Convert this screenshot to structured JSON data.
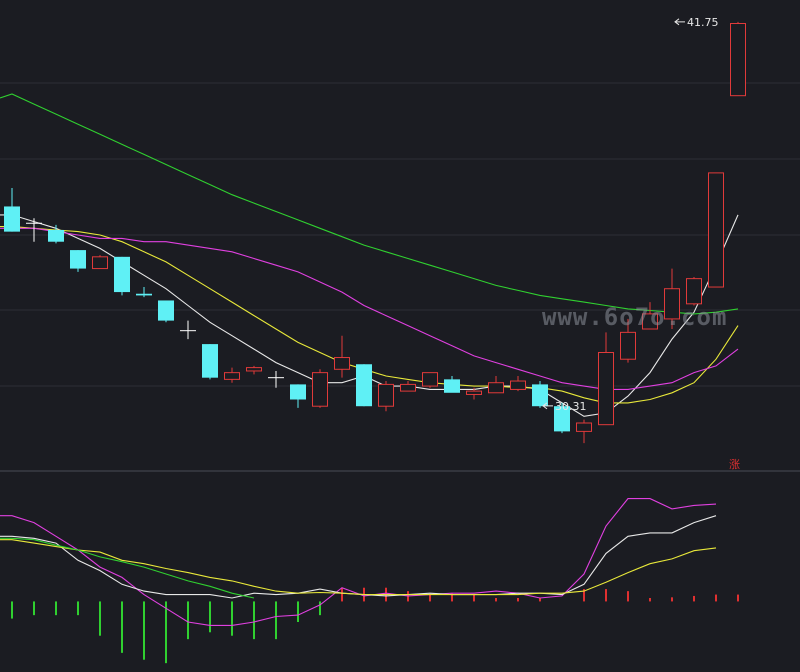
{
  "watermark": "www.6o7o.com",
  "limit_up_badge": "涨",
  "colors": {
    "background": "#1b1c22",
    "grid": "#2c2e37",
    "up": "#e03a3a",
    "down": "#5ff0f5",
    "cross": "#ffffff",
    "ma5": "#e8e8e8",
    "ma10": "#e8e83a",
    "ma20": "#e040e0",
    "ma60": "#30d030",
    "macd_pos": "#e03030",
    "macd_neg": "#30d030"
  },
  "chart_data": [
    {
      "type": "candlestick",
      "title": "",
      "ylim": [
        28.4,
        42.4
      ],
      "annotations": [
        {
          "text": "41.75",
          "value": 41.75,
          "candle": 30
        },
        {
          "text": "30.31",
          "value": 30.31,
          "candle": 24
        }
      ],
      "candles": [
        {
          "o": 36.25,
          "h": 36.8,
          "l": 35.5,
          "c": 35.5
        },
        {
          "o": 35.75,
          "h": 35.9,
          "l": 35.2,
          "c": 35.75
        },
        {
          "o": 35.55,
          "h": 35.7,
          "l": 35.15,
          "c": 35.2
        },
        {
          "o": 34.95,
          "h": 34.95,
          "l": 34.3,
          "c": 34.4
        },
        {
          "o": 34.4,
          "h": 34.8,
          "l": 34.4,
          "c": 34.75
        },
        {
          "o": 34.75,
          "h": 34.75,
          "l": 33.6,
          "c": 33.7
        },
        {
          "o": 33.65,
          "h": 33.85,
          "l": 33.55,
          "c": 33.6
        },
        {
          "o": 33.45,
          "h": 33.45,
          "l": 32.8,
          "c": 32.85
        },
        {
          "o": 32.55,
          "h": 32.85,
          "l": 32.3,
          "c": 32.55
        },
        {
          "o": 32.15,
          "h": 32.15,
          "l": 31.1,
          "c": 31.15
        },
        {
          "o": 31.1,
          "h": 31.45,
          "l": 31.0,
          "c": 31.3
        },
        {
          "o": 31.35,
          "h": 31.5,
          "l": 31.25,
          "c": 31.45
        },
        {
          "o": 31.15,
          "h": 31.35,
          "l": 30.85,
          "c": 31.15
        },
        {
          "o": 30.95,
          "h": 30.95,
          "l": 30.25,
          "c": 30.5
        },
        {
          "o": 30.3,
          "h": 31.4,
          "l": 30.25,
          "c": 31.3
        },
        {
          "o": 31.4,
          "h": 32.4,
          "l": 31.15,
          "c": 31.75
        },
        {
          "o": 31.55,
          "h": 31.55,
          "l": 30.3,
          "c": 30.3
        },
        {
          "o": 30.3,
          "h": 31.05,
          "l": 30.15,
          "c": 30.95
        },
        {
          "o": 30.75,
          "h": 31.05,
          "l": 30.75,
          "c": 30.95
        },
        {
          "o": 30.9,
          "h": 31.3,
          "l": 30.85,
          "c": 31.3
        },
        {
          "o": 31.1,
          "h": 31.2,
          "l": 30.8,
          "c": 30.7
        },
        {
          "o": 30.65,
          "h": 30.85,
          "l": 30.5,
          "c": 30.75
        },
        {
          "o": 30.7,
          "h": 31.2,
          "l": 30.7,
          "c": 31.0
        },
        {
          "o": 30.8,
          "h": 31.2,
          "l": 30.75,
          "c": 31.05
        },
        {
          "o": 30.95,
          "h": 31.05,
          "l": 30.25,
          "c": 30.3
        },
        {
          "o": 30.3,
          "h": 30.4,
          "l": 29.5,
          "c": 29.55
        },
        {
          "o": 29.55,
          "h": 29.9,
          "l": 29.2,
          "c": 29.8
        },
        {
          "o": 29.75,
          "h": 32.5,
          "l": 29.75,
          "c": 31.9
        },
        {
          "o": 31.7,
          "h": 32.9,
          "l": 31.6,
          "c": 32.5
        },
        {
          "o": 32.6,
          "h": 33.4,
          "l": 32.6,
          "c": 33.05
        },
        {
          "o": 32.9,
          "h": 34.4,
          "l": 32.6,
          "c": 33.8
        },
        {
          "o": 33.35,
          "h": 34.15,
          "l": 33.3,
          "c": 34.1
        },
        {
          "o": 33.85,
          "h": 37.25,
          "l": 33.85,
          "c": 37.25
        },
        {
          "o": 39.55,
          "h": 41.75,
          "l": 39.55,
          "c": 41.7
        }
      ],
      "ma": [
        {
          "label": "MA5",
          "color_key": "ma5",
          "values": [
            36.0,
            35.8,
            35.6,
            35.3,
            35.0,
            34.6,
            34.2,
            33.8,
            33.3,
            32.8,
            32.4,
            32.0,
            31.6,
            31.3,
            31.0,
            31.0,
            31.2,
            30.9,
            30.9,
            30.8,
            30.8,
            30.8,
            30.9,
            30.9,
            30.8,
            30.4,
            30.0,
            30.1,
            30.6,
            31.3,
            32.3,
            33.1,
            34.5,
            36.0
          ]
        },
        {
          "label": "MA10",
          "color_key": "ma10",
          "values": [
            35.65,
            35.6,
            35.55,
            35.5,
            35.4,
            35.2,
            34.9,
            34.6,
            34.2,
            33.8,
            33.4,
            33.0,
            32.6,
            32.2,
            31.9,
            31.6,
            31.4,
            31.2,
            31.1,
            31.0,
            30.95,
            30.9,
            30.9,
            30.85,
            30.85,
            30.75,
            30.55,
            30.4,
            30.4,
            30.5,
            30.7,
            31.0,
            31.7,
            32.7
          ]
        },
        {
          "label": "MA20",
          "color_key": "ma20",
          "values": [
            35.6,
            35.6,
            35.5,
            35.4,
            35.3,
            35.3,
            35.2,
            35.2,
            35.1,
            35.0,
            34.9,
            34.7,
            34.5,
            34.3,
            34.0,
            33.7,
            33.3,
            33.0,
            32.7,
            32.4,
            32.1,
            31.8,
            31.6,
            31.4,
            31.2,
            31.0,
            30.9,
            30.8,
            30.8,
            30.9,
            31.0,
            31.3,
            31.5,
            32.0
          ]
        },
        {
          "label": "MA60",
          "color_key": "ma60",
          "values": [
            39.6,
            39.3,
            39.0,
            38.7,
            38.4,
            38.1,
            37.8,
            37.5,
            37.2,
            36.9,
            36.6,
            36.35,
            36.1,
            35.85,
            35.6,
            35.35,
            35.1,
            34.9,
            34.7,
            34.5,
            34.3,
            34.1,
            33.9,
            33.75,
            33.6,
            33.5,
            33.4,
            33.3,
            33.2,
            33.15,
            33.1,
            33.05,
            33.1,
            33.2
          ]
        }
      ]
    },
    {
      "type": "bar",
      "title": "",
      "ylim": [
        -1.0,
        1.8
      ],
      "histogram": [
        -0.25,
        -0.2,
        -0.2,
        -0.2,
        -0.5,
        -0.75,
        -0.85,
        -0.9,
        -0.55,
        -0.45,
        -0.5,
        -0.55,
        -0.55,
        -0.3,
        -0.2,
        0.2,
        0.2,
        0.2,
        0.15,
        0.1,
        0.12,
        0.1,
        0.05,
        0.05,
        0.05,
        0.0,
        0.18,
        0.18,
        0.15,
        0.05,
        0.06,
        0.08,
        0.1,
        0.1
      ],
      "series": [
        {
          "color_key": "ma20",
          "values": [
            1.25,
            1.15,
            0.95,
            0.75,
            0.5,
            0.35,
            0.1,
            -0.1,
            -0.3,
            -0.35,
            -0.35,
            -0.3,
            -0.22,
            -0.2,
            -0.05,
            0.2,
            0.08,
            0.12,
            0.08,
            0.1,
            0.12,
            0.12,
            0.15,
            0.12,
            0.05,
            0.08,
            0.4,
            1.1,
            1.5,
            1.5,
            1.35,
            1.4,
            1.42
          ]
        },
        {
          "color_key": "ma5",
          "values": [
            0.95,
            0.92,
            0.85,
            0.6,
            0.45,
            0.25,
            0.15,
            0.1,
            0.1,
            0.1,
            0.05,
            0.12,
            0.1,
            0.12,
            0.18,
            0.12,
            0.1,
            0.08,
            0.1,
            0.12,
            0.1,
            0.1,
            0.1,
            0.12,
            0.12,
            0.1,
            0.25,
            0.7,
            0.95,
            1.0,
            1.0,
            1.15,
            1.25
          ]
        },
        {
          "color_key": "ma10",
          "values": [
            0.9,
            0.85,
            0.8,
            0.75,
            0.72,
            0.6,
            0.55,
            0.48,
            0.42,
            0.35,
            0.3,
            0.22,
            0.15,
            0.12,
            0.13,
            0.12,
            0.1,
            0.1,
            0.1,
            0.1,
            0.1,
            0.1,
            0.1,
            0.1,
            0.12,
            0.12,
            0.15,
            0.28,
            0.42,
            0.55,
            0.62,
            0.74,
            0.78
          ]
        },
        {
          "color_key": "ma60",
          "values": [
            0.92,
            0.9,
            0.82,
            0.75,
            0.65,
            0.58,
            0.5,
            0.4,
            0.3,
            0.22,
            0.12,
            0.05
          ]
        }
      ]
    }
  ]
}
